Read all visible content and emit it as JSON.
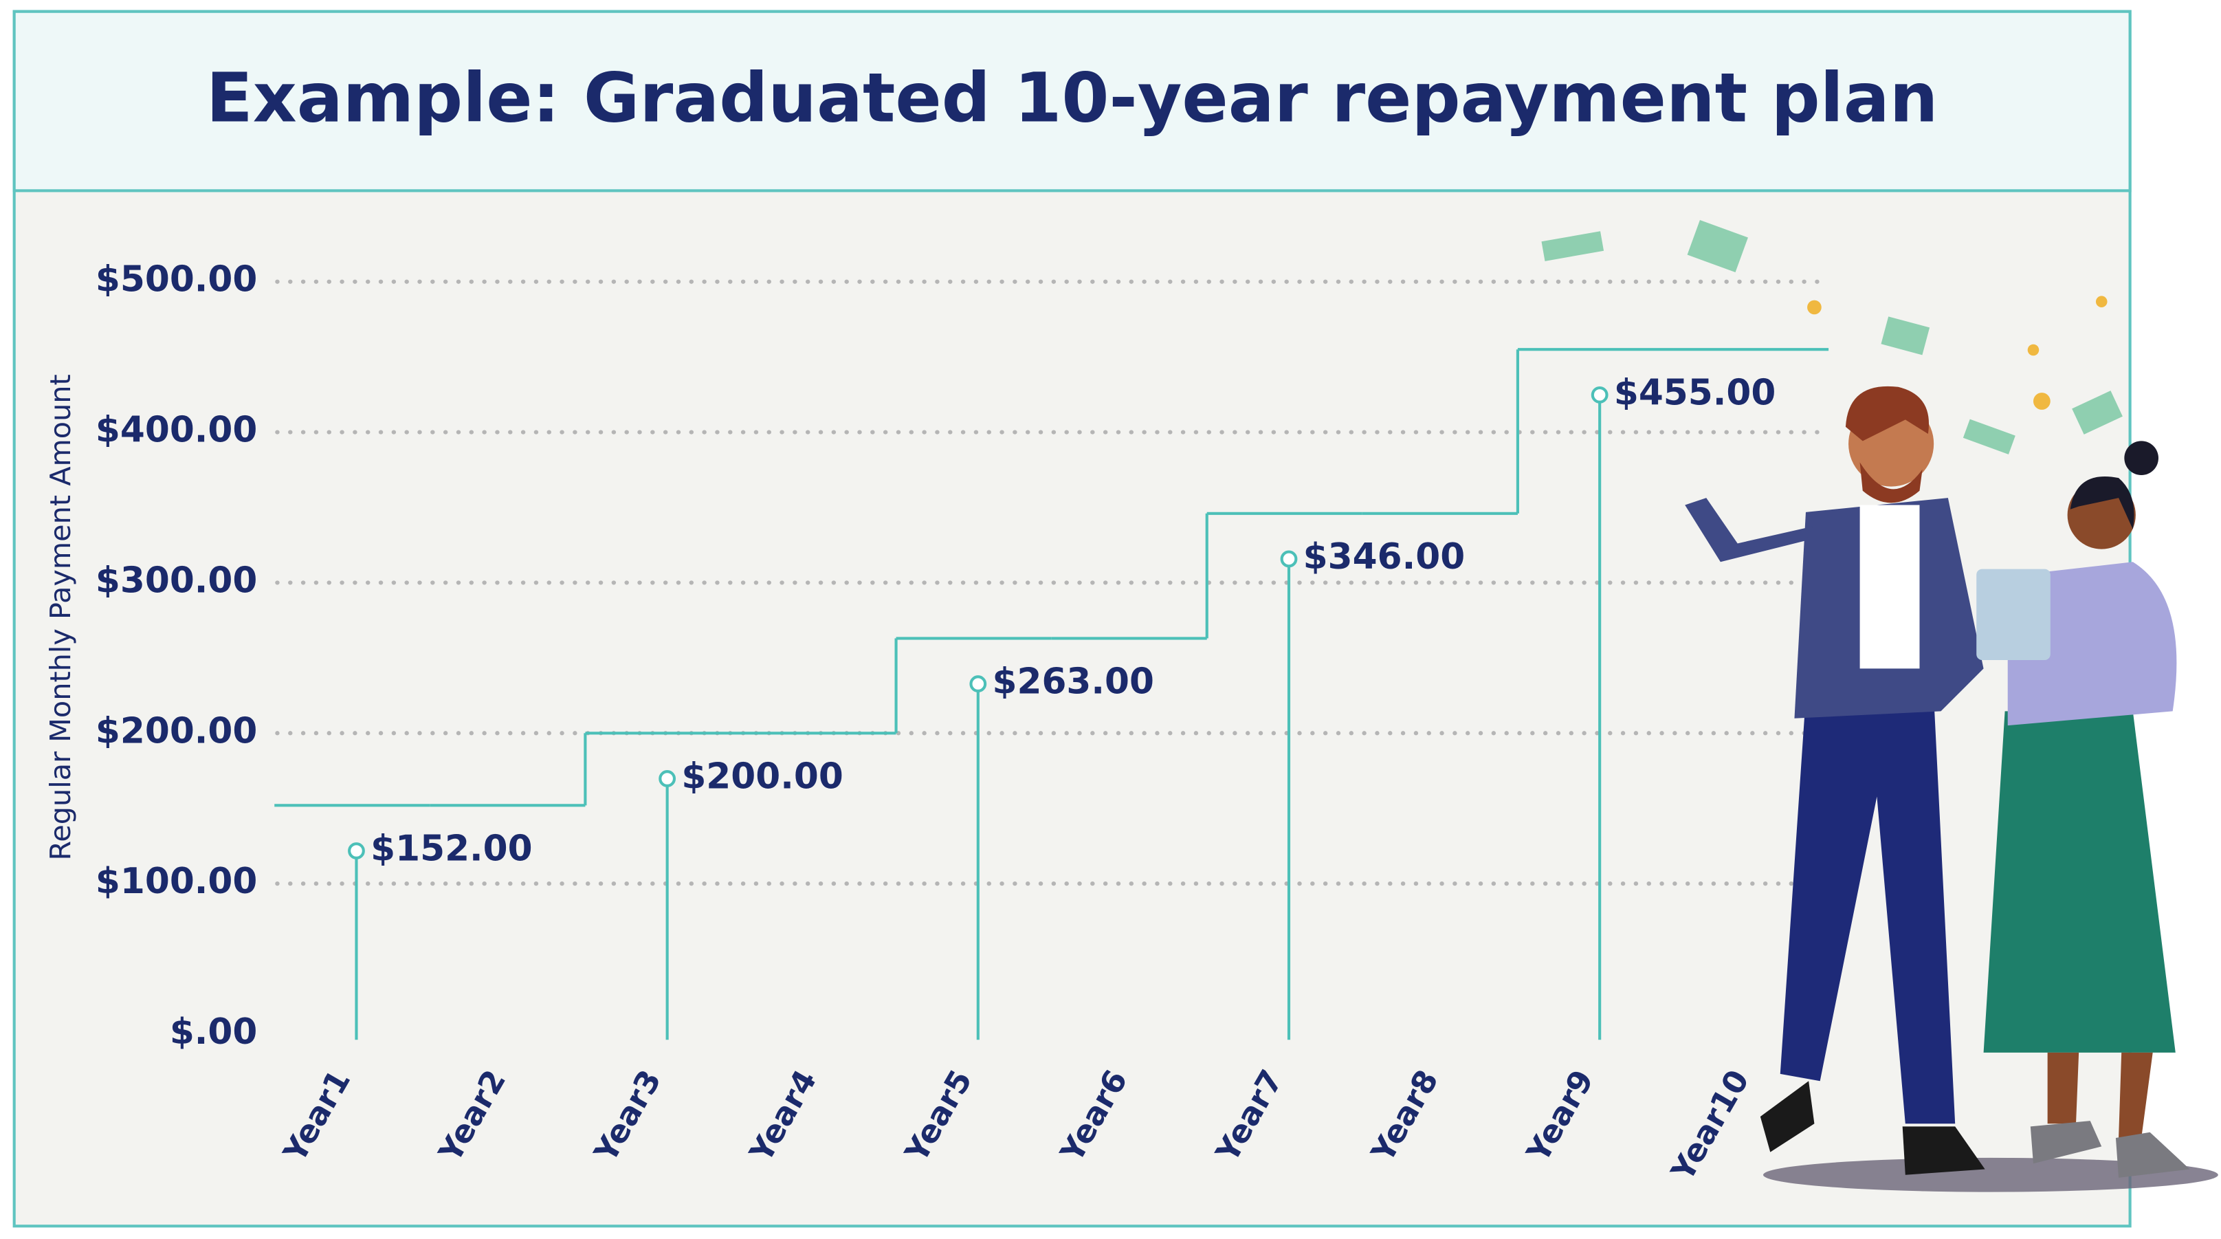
{
  "chart_data": {
    "type": "step",
    "title": "Example: Graduated 10-year repayment plan",
    "y_label": "Regular Monthly Payment Amount",
    "categories": [
      "Year1",
      "Year2",
      "Year3",
      "Year4",
      "Year5",
      "Year6",
      "Year7",
      "Year8",
      "Year9",
      "Year10"
    ],
    "values": [
      152,
      152,
      200,
      200,
      263,
      263,
      346,
      346,
      455,
      455
    ],
    "value_labels": [
      "$152.00",
      null,
      "$200.00",
      null,
      "$263.00",
      null,
      "$346.00",
      null,
      "$455.00",
      null
    ],
    "color": "#4cc0b8",
    "ylim": [
      0,
      500
    ],
    "yticks": [
      {
        "value": 0,
        "label": "$.00"
      },
      {
        "value": 100,
        "label": "$100.00"
      },
      {
        "value": 200,
        "label": "$200.00"
      },
      {
        "value": 300,
        "label": "$300.00"
      },
      {
        "value": 400,
        "label": "$400.00"
      },
      {
        "value": 500,
        "label": "$500.00"
      }
    ],
    "grid": true
  }
}
